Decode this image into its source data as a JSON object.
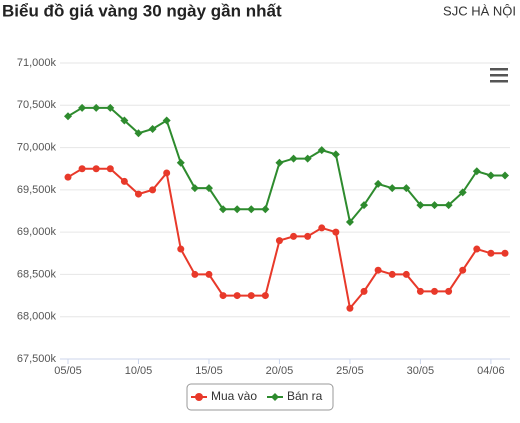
{
  "chart_data": {
    "type": "line",
    "title": "Biểu đồ giá vàng 30 ngày gần nhất",
    "subtitle": "SJC HÀ NỘI",
    "categories": [
      "05/05",
      null,
      null,
      null,
      null,
      "10/05",
      null,
      null,
      null,
      null,
      "15/05",
      null,
      null,
      null,
      null,
      "20/05",
      null,
      null,
      null,
      null,
      "25/05",
      null,
      null,
      null,
      null,
      "30/05",
      null,
      null,
      null,
      null,
      "04/06",
      null
    ],
    "series": [
      {
        "name": "Mua vào",
        "color": "#e8392a",
        "marker": "circle",
        "values": [
          69650,
          69750,
          69750,
          69750,
          69600,
          69450,
          69500,
          69700,
          68800,
          68500,
          68500,
          68250,
          68250,
          68250,
          68250,
          68900,
          68950,
          68950,
          69050,
          69000,
          68100,
          68300,
          68550,
          68500,
          68500,
          68300,
          68300,
          68300,
          68550,
          68800,
          68750,
          68750
        ]
      },
      {
        "name": "Bán ra",
        "color": "#2e8b2e",
        "marker": "diamond",
        "values": [
          70370,
          70470,
          70470,
          70470,
          70320,
          70170,
          70220,
          70320,
          69820,
          69520,
          69520,
          69270,
          69270,
          69270,
          69270,
          69820,
          69870,
          69870,
          69970,
          69920,
          69120,
          69320,
          69570,
          69520,
          69520,
          69320,
          69320,
          69320,
          69470,
          69720,
          69670,
          69670
        ]
      }
    ],
    "ylim": [
      67500,
      71000
    ],
    "yticks": [
      {
        "value": 67500,
        "label": "67,500k"
      },
      {
        "value": 68000,
        "label": "68,000k"
      },
      {
        "value": 68500,
        "label": "68,500k"
      },
      {
        "value": 69000,
        "label": "69,000k"
      },
      {
        "value": 69500,
        "label": "69,500k"
      },
      {
        "value": 70000,
        "label": "70,000k"
      },
      {
        "value": 70500,
        "label": "70,500k"
      },
      {
        "value": 71000,
        "label": "71,000k"
      }
    ],
    "grid": true
  }
}
